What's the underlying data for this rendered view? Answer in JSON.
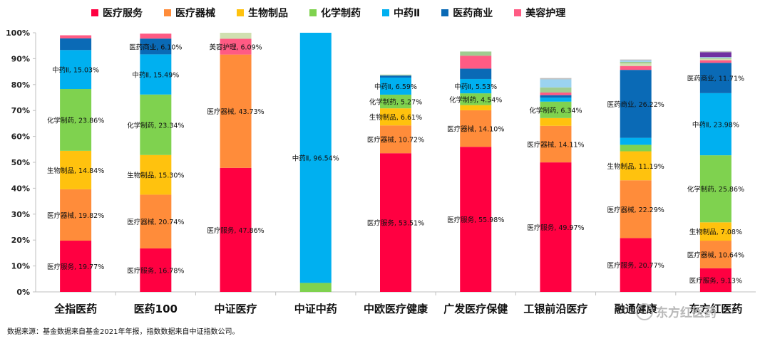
{
  "chart_data": {
    "type": "bar",
    "stacked": true,
    "ylim": [
      0,
      100
    ],
    "y_ticks": [
      "0%",
      "10%",
      "20%",
      "30%",
      "40%",
      "50%",
      "60%",
      "70%",
      "80%",
      "90%",
      "100%"
    ],
    "categories": [
      "全指医药",
      "医药100",
      "中证医疗",
      "中证中药",
      "中欧医疗健康",
      "广发医疗保健",
      "工银前沿医疗",
      "融通健康",
      "东方红医药"
    ],
    "series": [
      {
        "name": "医疗服务",
        "color": "#ff0041",
        "values": [
          19.77,
          16.78,
          47.86,
          0,
          53.51,
          55.98,
          49.97,
          20.77,
          9.13
        ]
      },
      {
        "name": "医疗器械",
        "color": "#ff8c3a",
        "values": [
          19.82,
          20.74,
          43.73,
          0,
          10.72,
          14.1,
          14.11,
          22.29,
          10.64
        ]
      },
      {
        "name": "生物制品",
        "color": "#ffc20e",
        "values": [
          14.84,
          15.3,
          0,
          0,
          6.61,
          2.0,
          3.0,
          11.19,
          7.08
        ]
      },
      {
        "name": "化学制药",
        "color": "#7fd24f",
        "values": [
          23.86,
          23.34,
          0,
          3.46,
          5.27,
          4.54,
          6.34,
          2.5,
          25.86
        ]
      },
      {
        "name": "中药Ⅱ",
        "color": "#00b0f0",
        "values": [
          15.03,
          15.49,
          0,
          96.54,
          6.59,
          5.53,
          1.5,
          2.7,
          23.98
        ]
      },
      {
        "name": "医药商业",
        "color": "#0a6ab6",
        "values": [
          4.5,
          6.1,
          0,
          0,
          0.8,
          4.0,
          1.0,
          26.22,
          11.71
        ]
      },
      {
        "name": "美容护理",
        "color": "#ff5b84",
        "values": [
          1.2,
          1.9,
          6.09,
          0,
          0,
          5.0,
          1.0,
          1.5,
          1.0
        ]
      },
      {
        "name": "",
        "color": "#d0e0b0",
        "values": [
          0,
          0,
          2.32,
          0,
          0.2,
          0,
          0,
          1.0,
          0.5
        ]
      },
      {
        "name": "",
        "color": "#a0cc90",
        "values": [
          0,
          0,
          0,
          0,
          0.15,
          1.6,
          2.0,
          0.6,
          0.4
        ]
      },
      {
        "name": "",
        "color": "#9bd3f0",
        "values": [
          0,
          0,
          0,
          0,
          0,
          0,
          3.1,
          0.5,
          0.3
        ]
      },
      {
        "name": "",
        "color": "#7030a0",
        "values": [
          0,
          0,
          0,
          0,
          0,
          0,
          0,
          0,
          1.9
        ]
      },
      {
        "name": "",
        "color": "#bfbfbf",
        "values": [
          0,
          0,
          0,
          0,
          0,
          0,
          0.5,
          0.4,
          0.4
        ]
      }
    ],
    "data_labels": [
      [
        "医疗服务, 19.77%",
        "医疗器械, 19.82%",
        "生物制品, 14.84%",
        "化学制药, 23.86%",
        "中药Ⅱ, 15.03%",
        "",
        "",
        "",
        "",
        "",
        "",
        ""
      ],
      [
        "医疗服务, 16.78%",
        "医疗器械, 20.74%",
        "生物制品, 15.30%",
        "化学制药, 23.34%",
        "中药Ⅱ, 15.49%",
        "医药商业, 6.10%",
        "",
        "",
        "",
        "",
        "",
        ""
      ],
      [
        "医疗服务, 47.86%",
        "医疗器械, 43.73%",
        "",
        "",
        "",
        "",
        "美容护理, 6.09%",
        "",
        "",
        "",
        "",
        ""
      ],
      [
        "",
        "",
        "",
        "",
        "中药Ⅱ, 96.54%",
        "",
        "",
        "",
        "",
        "",
        "",
        ""
      ],
      [
        "医疗服务, 53.51%",
        "医疗器械, 10.72%",
        "生物制品, 6.61%",
        "化学制药, 5.27%",
        "中药Ⅱ, 6.59%",
        "",
        "",
        "",
        "",
        "",
        "",
        ""
      ],
      [
        "医疗服务, 55.98%",
        "医疗器械, 14.10%",
        "",
        "化学制药, 4.54%",
        "中药Ⅱ, 5.53%",
        "",
        "",
        "",
        "",
        "",
        "",
        ""
      ],
      [
        "医疗服务, 49.97%",
        "医疗器械, 14.11%",
        "",
        "化学制药, 6.34%",
        "",
        "",
        "",
        "",
        "",
        "",
        "",
        ""
      ],
      [
        "医疗服务, 20.77%",
        "医疗器械, 22.29%",
        "生物制品, 11.19%",
        "",
        "",
        "医药商业, 26.22%",
        "",
        "",
        "",
        "",
        "",
        ""
      ],
      [
        "医疗服务, 9.13%",
        "医疗器械, 10.64%",
        "生物制品, 7.08%",
        "化学制药, 25.86%",
        "中药Ⅱ, 23.98%",
        "医药商业, 11.71%",
        "",
        "",
        "",
        "",
        "",
        ""
      ]
    ],
    "legend_position": "top",
    "grid": false
  },
  "source_note": "数据来源：基金数据来自基金2021年年报，指数数据来自中证指数公司。",
  "watermark": "东方红医药"
}
